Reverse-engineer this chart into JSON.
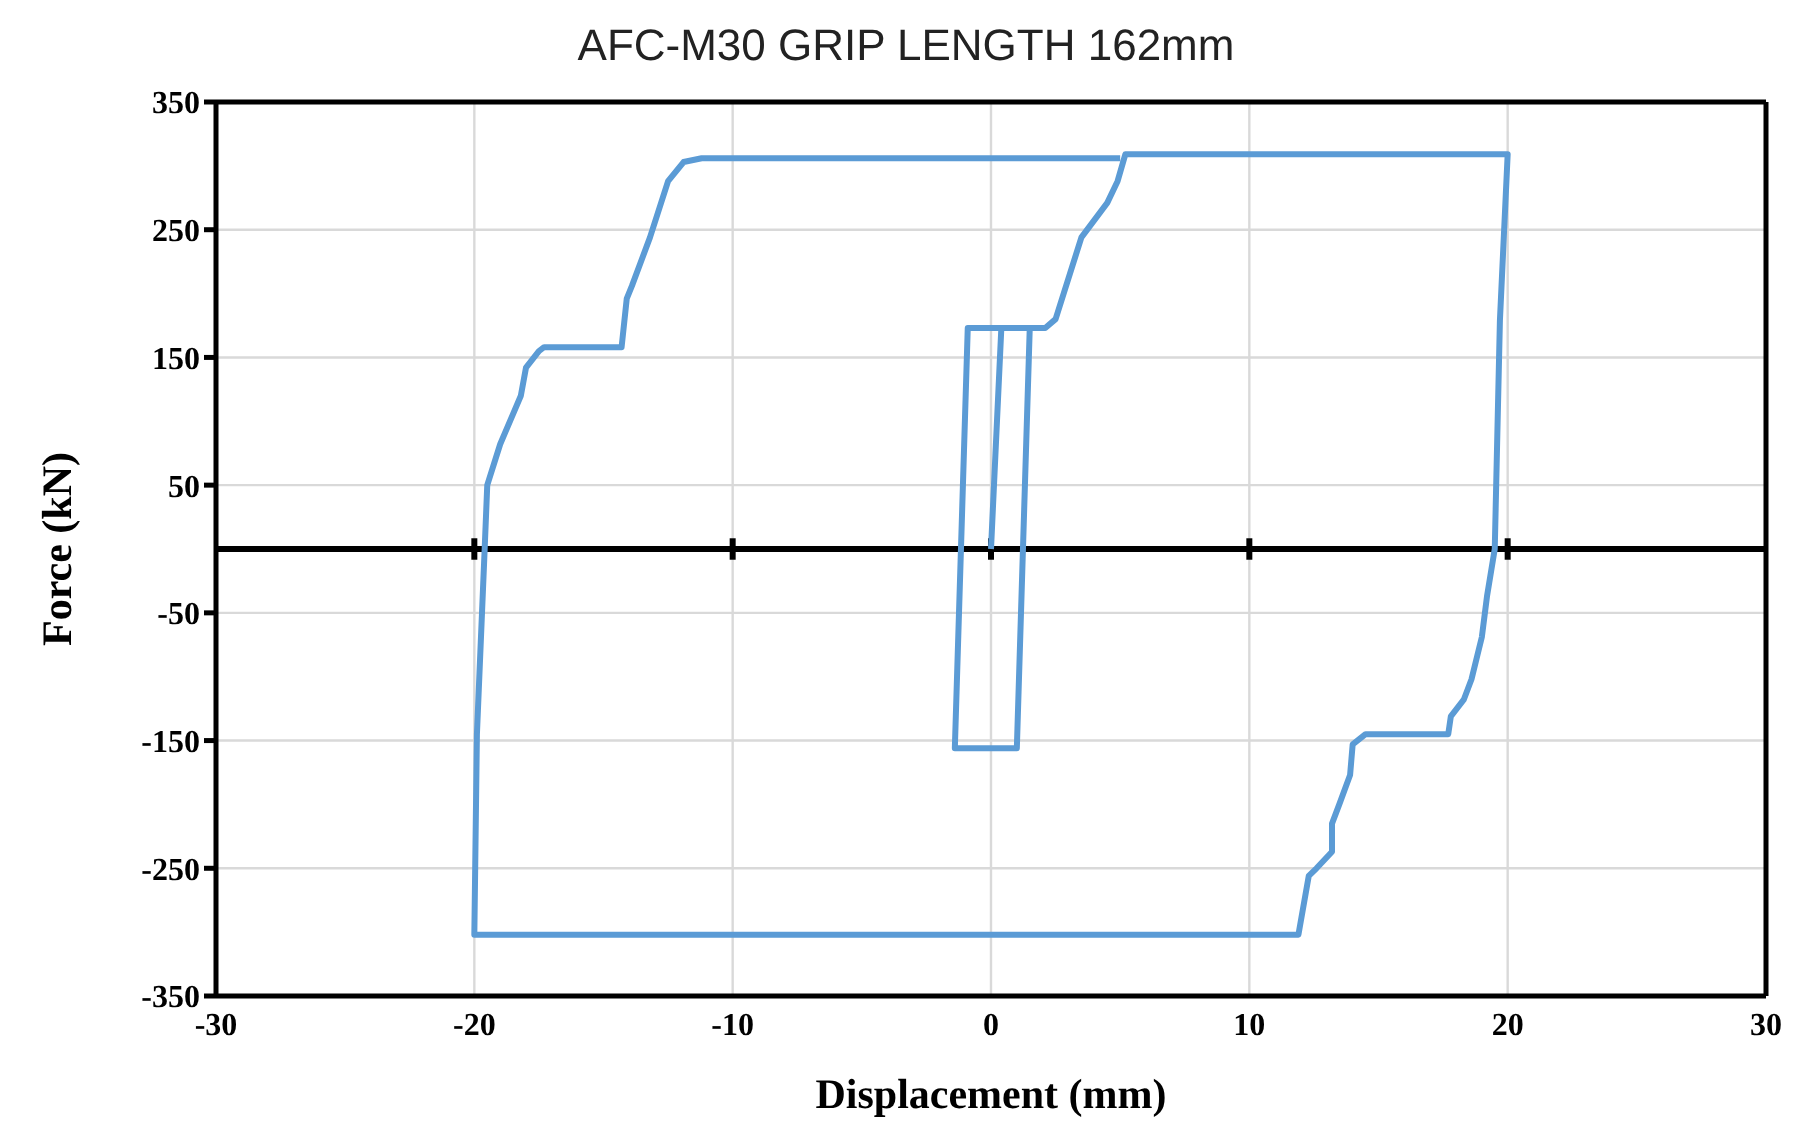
{
  "chart_data": {
    "type": "line",
    "title": "AFC-M30 GRIP LENGTH 162mm",
    "xlabel": "Displacement (mm)",
    "ylabel": "Force  (kN)",
    "xlim": [
      -30,
      30
    ],
    "xticks": [
      -30,
      -20,
      -10,
      0,
      10,
      20,
      30
    ],
    "ylim": [
      -350,
      350
    ],
    "yticks": [
      -350,
      -250,
      -150,
      -50,
      50,
      150,
      250,
      350
    ],
    "grid": true,
    "marker": "none",
    "line_style": "solid",
    "series": [
      {
        "color": "#5b9bd5",
        "x": [
          0,
          0.4,
          1.5,
          1.0,
          -1.4,
          -0.9,
          2.1,
          2.5,
          3.5,
          4.5,
          4.9,
          5.2,
          20,
          19.7,
          19.5,
          19.2,
          19,
          18.6,
          18.3,
          17.8,
          17.7,
          14.5,
          14,
          13.9,
          13.5,
          13.2,
          13.2,
          12.6,
          12.3,
          11.9,
          -20,
          -19.9,
          -19.6,
          -19.5,
          -19,
          -18.2,
          -18,
          -17.5,
          -17.3,
          -14.3,
          -14.1,
          -13.9,
          -13.2,
          -12.5,
          -11.9,
          -11.2,
          5
        ],
        "values": [
          0,
          173,
          173,
          -156,
          -156,
          173,
          173,
          180,
          244,
          271,
          288,
          309,
          309,
          179,
          0,
          -37,
          -69,
          -102,
          -118,
          -131,
          -145,
          -145,
          -153,
          -177,
          -199,
          -215,
          -237,
          -250,
          -256,
          -302,
          -302,
          -145,
          0,
          50,
          82,
          120,
          142,
          155,
          158,
          158,
          196,
          206,
          244,
          288,
          303,
          306,
          306
        ]
      }
    ]
  }
}
